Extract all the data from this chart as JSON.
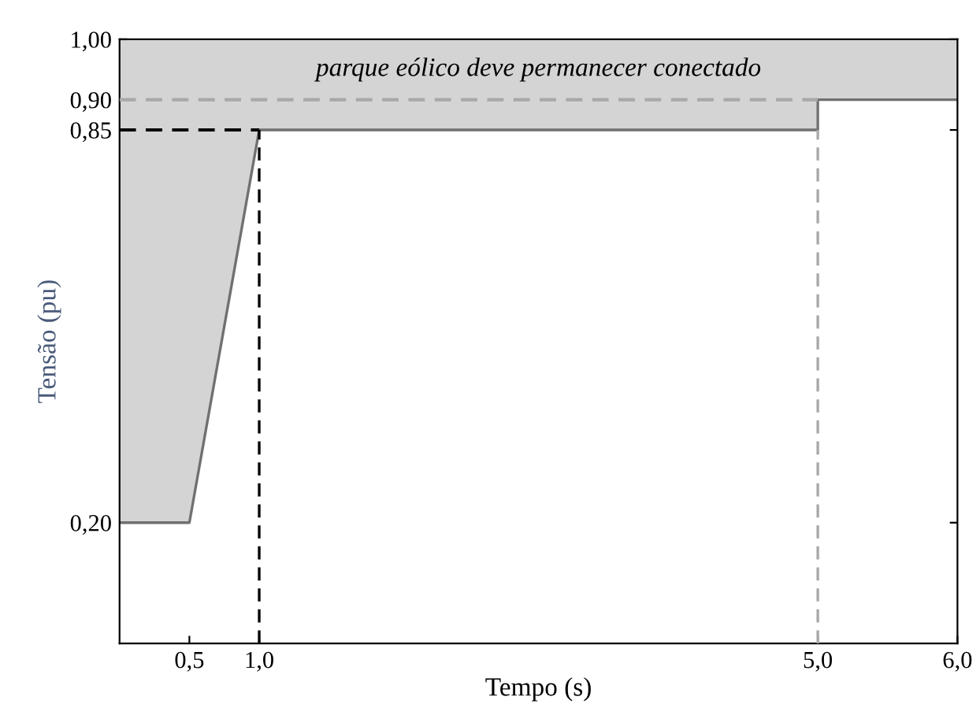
{
  "chart_data": {
    "type": "line",
    "xlabel": "Tempo (s)",
    "ylabel": "Tensão (pu)",
    "x": [
      0,
      0.5,
      1.0,
      5.0,
      5.0,
      6.0
    ],
    "series": [
      {
        "color": "#707070",
        "values": [
          0.2,
          0.2,
          0.85,
          0.85,
          0.9,
          0.9
        ],
        "lower": [
          0.2,
          0.2,
          0.85,
          0.85,
          0.9,
          0.9
        ],
        "upper": [
          1.0,
          1.0,
          1.0,
          1.0,
          1.0,
          1.0
        ]
      }
    ],
    "xlim": [
      0,
      6
    ],
    "ylim": [
      0,
      1.0
    ],
    "xticks": [
      {
        "value": 0.5,
        "label": "0,5"
      },
      {
        "value": 1.0,
        "label": "1,0"
      },
      {
        "value": 5.0,
        "label": "5,0"
      },
      {
        "value": 6.0,
        "label": "6,0"
      }
    ],
    "yticks": [
      {
        "value": 0.2,
        "label": "0,20"
      },
      {
        "value": 0.85,
        "label": "0,85"
      },
      {
        "value": 0.9,
        "label": "0,90"
      },
      {
        "value": 1.0,
        "label": "1,00"
      }
    ],
    "ref_lines": [
      {
        "axis": "y",
        "value": 0.85,
        "color": "#000000",
        "line_style": "dashed"
      },
      {
        "axis": "x",
        "value": 1.0,
        "color": "#000000",
        "line_style": "dashed"
      },
      {
        "axis": "y",
        "value": 0.9,
        "color": "#a8a8a8",
        "line_style": "dashed"
      },
      {
        "axis": "x",
        "value": 5.0,
        "color": "#a8a8a8",
        "line_style": "dashed"
      }
    ],
    "annotations": [
      "parque eólico deve permanecer conectado"
    ],
    "grid": false,
    "legend": false
  }
}
